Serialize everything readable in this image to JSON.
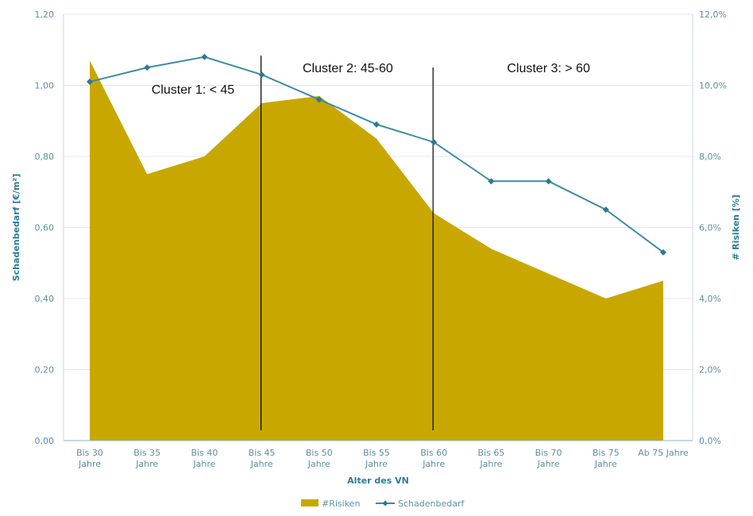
{
  "chart_data": {
    "type": "area",
    "xlabel": "Alter des VN",
    "ylabel_left": "Schadenbedarf [€/m²]",
    "ylabel_right": "# Risiken [%]",
    "ylim_left": [
      0,
      1.2
    ],
    "ylim_right": [
      0,
      12
    ],
    "yticks_left": [
      "0,00",
      "0,20",
      "0,40",
      "0,60",
      "0,80",
      "1,00",
      "1,20"
    ],
    "yticks_right": [
      "0,0%",
      "2,0%",
      "4,0%",
      "6,0%",
      "8,0%",
      "10,0%",
      "12,0%"
    ],
    "categories": [
      [
        "Bis 30",
        "Jahre"
      ],
      [
        "Bis 35",
        "Jahre"
      ],
      [
        "Bis 40",
        "Jahre"
      ],
      [
        "Bis 45",
        "Jahre"
      ],
      [
        "Bis 50",
        "Jahre"
      ],
      [
        "Bis 55",
        "Jahre"
      ],
      [
        "Bis 60",
        "Jahre"
      ],
      [
        "Bis 65",
        "Jahre"
      ],
      [
        "Bis 70",
        "Jahre"
      ],
      [
        "Bis 75",
        "Jahre"
      ],
      [
        "Ab 75 Jahre"
      ]
    ],
    "series": [
      {
        "name": "#Risiken",
        "type": "area",
        "axis": "right",
        "color": "#c8a800",
        "values": [
          10.7,
          7.5,
          8.0,
          9.5,
          9.7,
          8.5,
          6.4,
          5.4,
          4.7,
          4.0,
          4.5
        ]
      },
      {
        "name": "Schadenbedarf",
        "type": "line",
        "axis": "left",
        "color": "#3d8ba6",
        "values": [
          1.01,
          1.05,
          1.08,
          1.03,
          0.96,
          0.89,
          0.84,
          0.73,
          0.73,
          0.65,
          0.53
        ]
      }
    ],
    "grid": true,
    "legend_position": "bottom",
    "annotations": {
      "dividers_after_category_index": [
        3,
        6
      ],
      "clusters": [
        {
          "label": "Cluster 1: < 45",
          "category_index": 1.8,
          "level": 0.99
        },
        {
          "label": "Cluster 2: 45-60",
          "category_index": 4.5,
          "level": 1.05
        },
        {
          "label": "Cluster 3: > 60",
          "category_index": 8.0,
          "level": 1.05
        }
      ]
    }
  }
}
